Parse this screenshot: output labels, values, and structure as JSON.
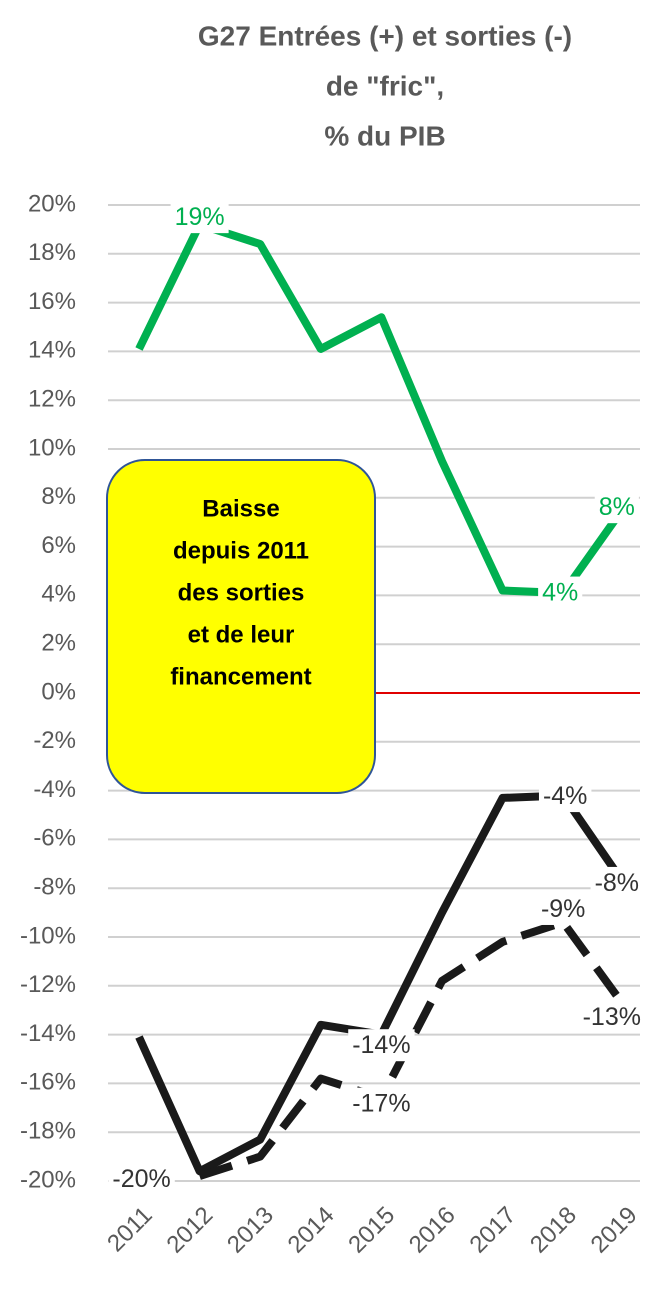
{
  "chart_data": {
    "type": "line",
    "title": [
      "G27  Entrées (+) et sorties (-)",
      "de \"fric\",",
      "% du PIB"
    ],
    "categories": [
      "2011",
      "2012",
      "2013",
      "2014",
      "2015",
      "2016",
      "2017",
      "2018",
      "2019"
    ],
    "ylim": [
      -20,
      20
    ],
    "yticks": [
      {
        "value": 20,
        "label": "20%"
      },
      {
        "value": 18,
        "label": "18%"
      },
      {
        "value": 16,
        "label": "16%"
      },
      {
        "value": 14,
        "label": "14%"
      },
      {
        "value": 12,
        "label": "12%"
      },
      {
        "value": 10,
        "label": "10%"
      },
      {
        "value": 8,
        "label": "8%"
      },
      {
        "value": 6,
        "label": "6%"
      },
      {
        "value": 4,
        "label": "4%"
      },
      {
        "value": 2,
        "label": "2%"
      },
      {
        "value": 0,
        "label": "0%"
      },
      {
        "value": -2,
        "label": "-2%"
      },
      {
        "value": -4,
        "label": "-4%"
      },
      {
        "value": -6,
        "label": "-6%"
      },
      {
        "value": -8,
        "label": "-8%"
      },
      {
        "value": -10,
        "label": "-10%"
      },
      {
        "value": -12,
        "label": "-12%"
      },
      {
        "value": -14,
        "label": "-14%"
      },
      {
        "value": -16,
        "label": "-16%"
      },
      {
        "value": -18,
        "label": "-18%"
      },
      {
        "value": -20,
        "label": "-20%"
      }
    ],
    "grid": true,
    "zero_line_color": "#e00000",
    "series": [
      {
        "color": "#00b050",
        "dashed": false,
        "values": [
          14.1,
          19.2,
          18.4,
          14.1,
          15.4,
          9.5,
          4.2,
          4.1,
          7.6
        ],
        "value_labels": [
          null,
          "19%",
          null,
          null,
          null,
          null,
          null,
          "4%",
          "8%"
        ]
      },
      {
        "color": "#1a1a1a",
        "dashed": false,
        "values": [
          -14.1,
          -19.6,
          -18.3,
          -13.6,
          -14.0,
          -9.0,
          -4.3,
          -4.2,
          -7.8
        ],
        "value_labels": [
          null,
          "-20%",
          null,
          null,
          "-14%",
          null,
          null,
          "-4%",
          "-8%"
        ]
      },
      {
        "color": "#1a1a1a",
        "dashed": true,
        "values": [
          null,
          -19.8,
          -19.0,
          -15.8,
          -16.6,
          -11.8,
          -10.2,
          -9.4,
          -12.8
        ],
        "value_labels": [
          null,
          null,
          null,
          null,
          "-17%",
          null,
          null,
          "-9%",
          "-13%"
        ]
      }
    ],
    "annotation": {
      "lines": [
        "Baisse",
        "depuis 2011",
        "des sorties",
        "et de leur",
        "financement"
      ],
      "fill": "#ffff00",
      "border": "#2f5597"
    }
  }
}
